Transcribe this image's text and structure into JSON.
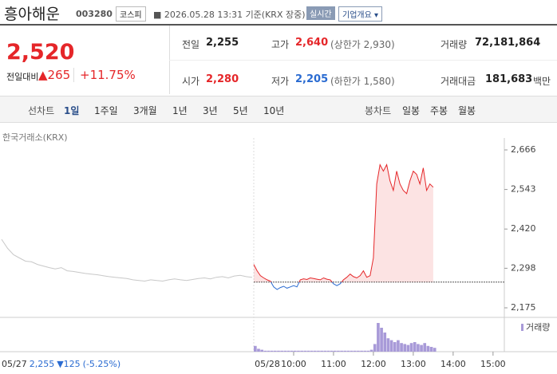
{
  "header": {
    "title": "흥아해운",
    "code": "003280",
    "market": "코스피",
    "timestamp": "2026.05.28 13:31 기준(KRX 장중)",
    "realtime": "실시간",
    "company_menu": "기업개요"
  },
  "price": {
    "current": "2,520",
    "change_label": "전일대비",
    "change": "265",
    "change_pct": "+11.75%"
  },
  "stats": [
    {
      "label": "전일",
      "value": "2,255"
    },
    {
      "label": "고가",
      "value": "2,640",
      "note": "(상한가 2,930)"
    },
    {
      "label": "거래량",
      "value": "72,181,864"
    },
    {
      "label": "시가",
      "value": "2,280"
    },
    {
      "label": "저가",
      "value": "2,205",
      "note": "(하한가 1,580)"
    },
    {
      "label": "거래대금",
      "value": "181,683",
      "unit": "백만"
    }
  ],
  "tabs": {
    "line_label": "선차트",
    "line": [
      "1일",
      "1주일",
      "3개월",
      "1년",
      "3년",
      "5년",
      "10년"
    ],
    "candle_label": "봉차트",
    "candle": [
      "일봉",
      "주봉",
      "월봉"
    ]
  },
  "chart_data": {
    "type": "line",
    "source": "한국거래소(KRX)",
    "ylim": [
      2175,
      2666
    ],
    "yticks": [
      {
        "value": 2175,
        "label": "2,175"
      },
      {
        "value": 2298,
        "label": "2,298"
      },
      {
        "value": 2420,
        "label": "2,420"
      },
      {
        "value": 2543,
        "label": "2,543"
      },
      {
        "value": 2666,
        "label": "2,666"
      }
    ],
    "baseline": 2255,
    "xlim": [
      540,
      917
    ],
    "xticks": [
      {
        "value": 600,
        "label": "10:00"
      },
      {
        "value": 660,
        "label": "11:00"
      },
      {
        "value": 720,
        "label": "12:00"
      },
      {
        "value": 780,
        "label": "13:00"
      },
      {
        "value": 840,
        "label": "14:00"
      },
      {
        "value": 900,
        "label": "15:00"
      }
    ],
    "day_label": "05/28",
    "prev_day": {
      "date": "05/27",
      "close": "2,255",
      "change": "125",
      "change_pct": "(-5.25%)",
      "color": "#c8c8c8",
      "values": [
        2388,
        2360,
        2340,
        2330,
        2320,
        2318,
        2310,
        2305,
        2300,
        2296,
        2300,
        2290,
        2288,
        2285,
        2282,
        2280,
        2278,
        2275,
        2272,
        2270,
        2268,
        2266,
        2262,
        2260,
        2258,
        2262,
        2260,
        2258,
        2262,
        2265,
        2262,
        2260,
        2263,
        2266,
        2268,
        2265,
        2270,
        2272,
        2268,
        2274,
        2276,
        2272,
        2270
      ]
    },
    "series": [
      {
        "name": "주가",
        "up_color": "#e52629",
        "down_color": "#2a6bd1",
        "x": [
          540,
          545,
          550,
          555,
          560,
          565,
          570,
          575,
          580,
          585,
          590,
          595,
          600,
          605,
          610,
          615,
          620,
          625,
          630,
          635,
          640,
          645,
          650,
          655,
          660,
          665,
          670,
          675,
          680,
          685,
          690,
          695,
          700,
          705,
          710,
          715,
          720,
          725,
          730,
          735,
          740,
          745,
          750,
          755,
          760,
          765,
          770,
          775,
          780,
          785,
          790,
          795,
          800,
          805,
          810
        ],
        "values": [
          2310,
          2290,
          2275,
          2268,
          2262,
          2258,
          2240,
          2232,
          2238,
          2242,
          2236,
          2240,
          2244,
          2240,
          2262,
          2265,
          2263,
          2268,
          2266,
          2264,
          2262,
          2268,
          2264,
          2262,
          2250,
          2244,
          2250,
          2262,
          2270,
          2280,
          2272,
          2268,
          2275,
          2290,
          2270,
          2275,
          2330,
          2560,
          2620,
          2600,
          2620,
          2570,
          2540,
          2600,
          2560,
          2540,
          2530,
          2570,
          2600,
          2590,
          2560,
          2610,
          2540,
          2560,
          2550
        ]
      }
    ],
    "volume": {
      "name": "거래량",
      "color": "#a89ad8",
      "x": [
        540,
        545,
        550,
        555,
        560,
        565,
        570,
        575,
        580,
        585,
        590,
        595,
        600,
        605,
        610,
        615,
        620,
        625,
        630,
        635,
        640,
        645,
        650,
        655,
        660,
        665,
        670,
        675,
        680,
        685,
        690,
        695,
        700,
        705,
        710,
        715,
        720,
        725,
        730,
        735,
        740,
        745,
        750,
        755,
        760,
        765,
        770,
        775,
        780,
        785,
        790,
        795,
        800,
        805,
        810
      ],
      "values": [
        6,
        3,
        2,
        1,
        1,
        1,
        1,
        1,
        1,
        1,
        1,
        1,
        1,
        1,
        1,
        1,
        1,
        1,
        1,
        1,
        1,
        1,
        1,
        1,
        1,
        1,
        1,
        1,
        1,
        1,
        1,
        1,
        1,
        1,
        1,
        2,
        8,
        30,
        25,
        20,
        14,
        12,
        10,
        12,
        9,
        8,
        7,
        9,
        10,
        8,
        7,
        9,
        6,
        5,
        4
      ]
    }
  }
}
